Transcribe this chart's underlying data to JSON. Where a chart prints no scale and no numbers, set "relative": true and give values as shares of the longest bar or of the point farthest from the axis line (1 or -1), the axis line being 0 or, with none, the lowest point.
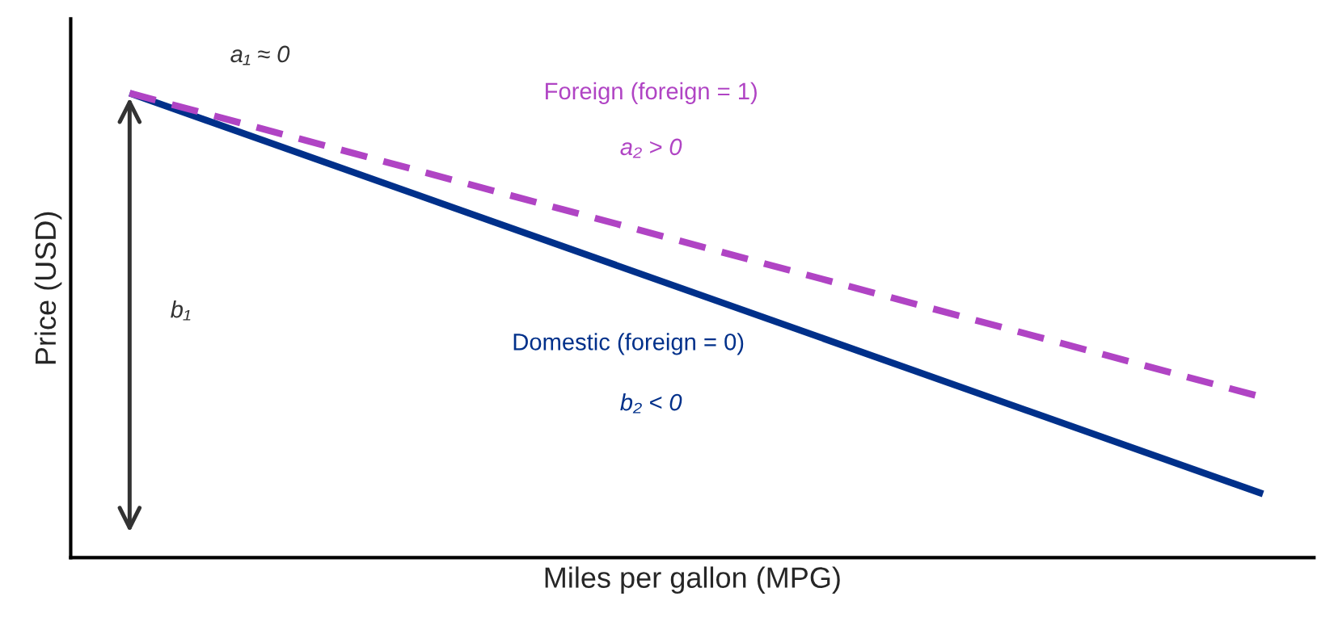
{
  "chart_data": {
    "type": "line",
    "relative": true,
    "xlabel": "Miles per gallon (MPG)",
    "ylabel": "Price (USD)",
    "categories": [
      null,
      null
    ],
    "series": [
      {
        "name": "Domestic (foreign = 0)",
        "color": "#00308a",
        "values": [
          1,
          0.137
        ],
        "line_style": "solid"
      },
      {
        "name": "Foreign (foreign = 1)",
        "color": "#b044c4",
        "values": [
          1,
          0.345
        ],
        "line_style": "dashed"
      }
    ],
    "annotations": [
      "a₁ ≈ 0",
      "b₁",
      "a₂ > 0",
      "b₂ < 0"
    ],
    "legend": false
  }
}
